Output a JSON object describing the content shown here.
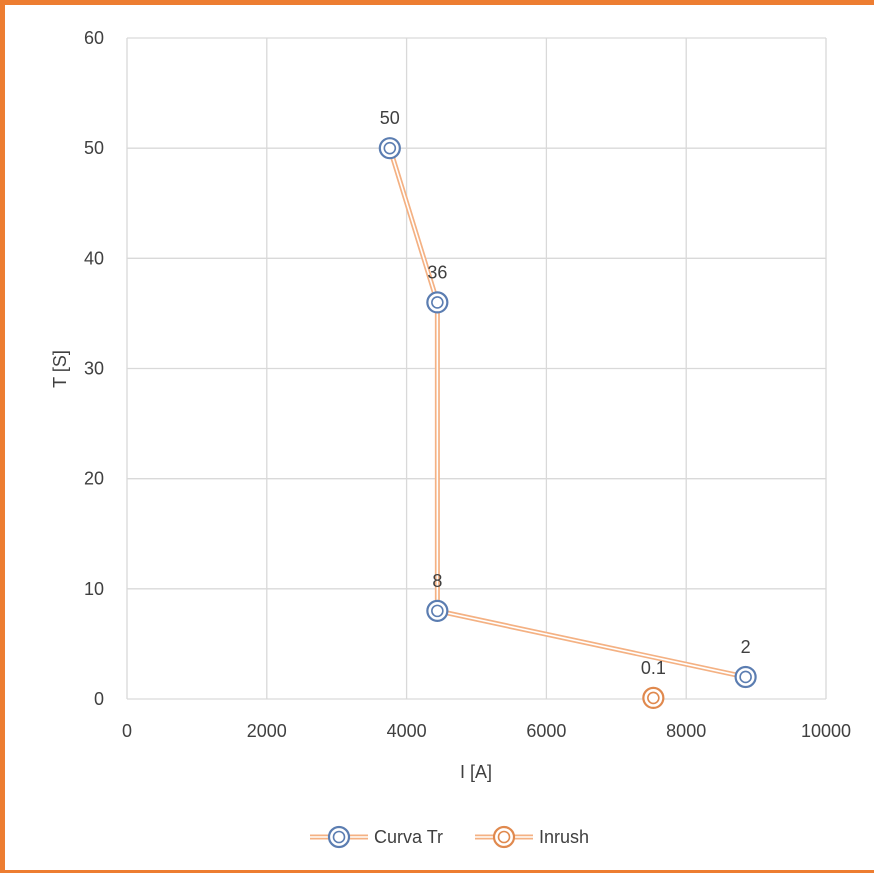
{
  "chart_data": {
    "type": "scatter",
    "xlabel": "I [A]",
    "ylabel": "T [S]",
    "xlim": [
      0,
      10000
    ],
    "ylim": [
      0,
      60
    ],
    "x_ticks": [
      0,
      2000,
      4000,
      6000,
      8000,
      10000
    ],
    "y_ticks": [
      0,
      10,
      20,
      30,
      40,
      50,
      60
    ],
    "grid": true,
    "legend_position": "bottom",
    "series": [
      {
        "name": "Curva Tr",
        "x": [
          3760,
          4440,
          4440,
          8850
        ],
        "y": [
          50,
          36,
          8,
          2
        ],
        "labels": [
          "50",
          "36",
          "8",
          "2"
        ],
        "line_color": "#F4B183",
        "marker_color": "#5B7DB1"
      },
      {
        "name": "Inrush",
        "x": [
          7530
        ],
        "y": [
          0.1
        ],
        "labels": [
          "0.1"
        ],
        "line_color": "#F4B183",
        "marker_color": "#E0894E"
      }
    ]
  }
}
